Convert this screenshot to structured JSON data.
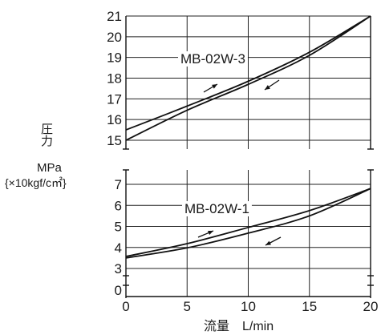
{
  "chart_data": [
    {
      "type": "line",
      "name": "upper-panel",
      "xlim": [
        0,
        20
      ],
      "ylim": [
        15,
        21
      ],
      "yticks": [
        15,
        16,
        17,
        18,
        19,
        20,
        21
      ],
      "series": [
        {
          "name": "MB-02W-3",
          "x": [
            0,
            5,
            10,
            15,
            20
          ],
          "y": [
            15.5,
            16.65,
            17.85,
            19.25,
            21.0
          ]
        },
        {
          "name": "",
          "x": [
            0,
            5,
            10,
            15,
            20
          ],
          "y": [
            15.0,
            16.45,
            17.7,
            19.1,
            21.0
          ]
        }
      ],
      "annotations": [
        "MB-02W-3"
      ]
    },
    {
      "type": "line",
      "name": "lower-panel",
      "xlim": [
        0,
        20
      ],
      "ylim": [
        0,
        7
      ],
      "yticks": [
        0,
        3,
        4,
        5,
        6,
        7
      ],
      "axis_break": true,
      "series": [
        {
          "name": "MB-02W-1",
          "x": [
            0,
            5,
            10,
            15,
            20
          ],
          "y": [
            3.57,
            4.18,
            4.95,
            5.75,
            6.8
          ]
        },
        {
          "name": "",
          "x": [
            0,
            5,
            10,
            15,
            20
          ],
          "y": [
            3.5,
            3.98,
            4.68,
            5.5,
            6.8
          ]
        }
      ],
      "annotations": [
        "MB-02W-1"
      ]
    }
  ],
  "axes": {
    "ylabel_line1": "圧",
    "ylabel_line2": "力",
    "yunit_line1": "MPa",
    "yunit_line2": "{×10kgf/c㎡}",
    "xlabel": "流量　L/min",
    "xticks": [
      0,
      5,
      10,
      15,
      20
    ]
  }
}
